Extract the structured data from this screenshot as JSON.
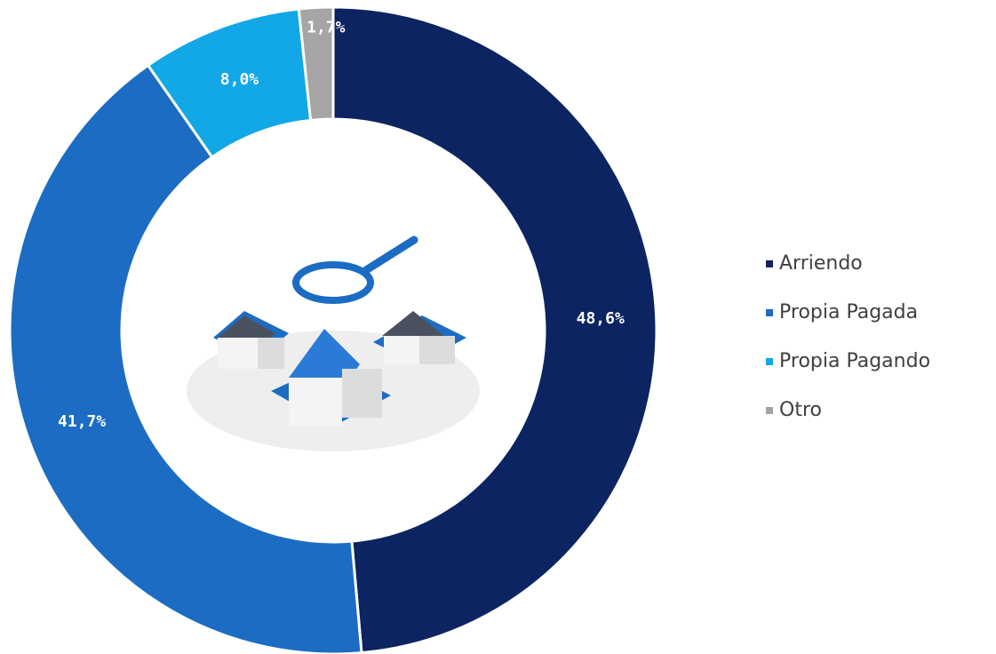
{
  "chart_data": {
    "type": "pie",
    "categories": [
      "Arriendo",
      "Propia Pagada",
      "Propia Pagando",
      "Otro"
    ],
    "values": [
      48.6,
      41.7,
      8.0,
      1.7
    ],
    "value_labels": [
      "48,6%",
      "41,7%",
      "8,0%",
      "1,7%"
    ],
    "colors": [
      "#0c2461",
      "#1c6cc3",
      "#12a7e6",
      "#a5a5a5"
    ],
    "donut": true,
    "legend": "right"
  }
}
